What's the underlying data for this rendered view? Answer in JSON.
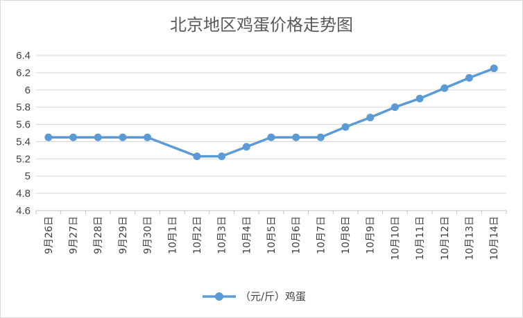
{
  "chart_data": {
    "type": "line",
    "title": "北京地区鸡蛋价格走势图",
    "categories": [
      "9月26日",
      "9月27日",
      "9月28日",
      "9月29日",
      "9月30日",
      "10月1日",
      "10月2日",
      "10月3日",
      "10月4日",
      "10月5日",
      "10月6日",
      "10月7日",
      "10月8日",
      "10月9日",
      "10月10日",
      "10月11日",
      "10月12日",
      "10月13日",
      "10月14日"
    ],
    "series": [
      {
        "name": "（元/斤）鸡蛋",
        "values": [
          5.45,
          5.45,
          5.45,
          5.45,
          5.45,
          null,
          5.23,
          5.23,
          5.34,
          5.45,
          5.45,
          5.45,
          5.57,
          5.68,
          5.8,
          5.9,
          6.02,
          6.14,
          6.25
        ]
      }
    ],
    "ylim": [
      4.6,
      6.4
    ],
    "yticks": [
      "4.6",
      "4.8",
      "5",
      "5.2",
      "5.4",
      "5.6",
      "5.8",
      "6",
      "6.2",
      "6.4"
    ],
    "grid": "horizontal",
    "legend": "bottom",
    "colors": {
      "series": "#5b9bd5",
      "border": "#d9d9d9"
    }
  }
}
